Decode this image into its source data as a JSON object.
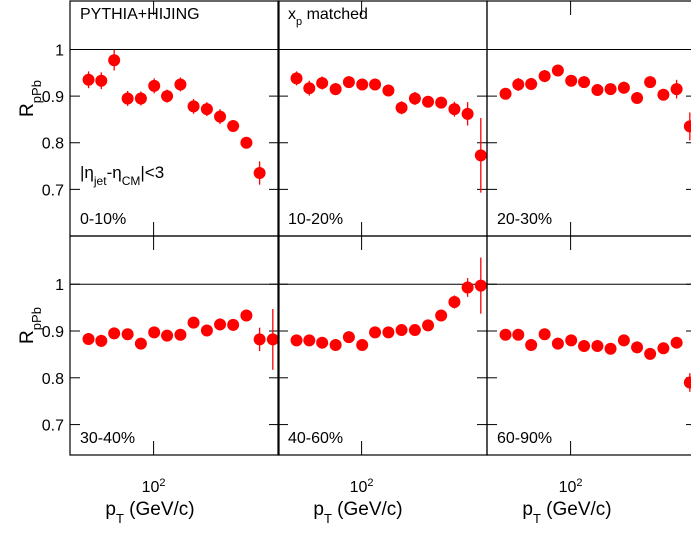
{
  "chart_data": [
    {
      "type": "scatter",
      "xscale": "log",
      "color": "#ff0000",
      "xlim": [
        25,
        800
      ],
      "ylim": [
        0.6,
        1.104
      ],
      "yticks": [
        0.7,
        0.8,
        0.9,
        1
      ],
      "xticks": [
        {
          "value": 100,
          "label": "10",
          "exponent": "2"
        }
      ],
      "hline": 1,
      "title": [
        {
          "text": "PYTHIA+HIJING"
        }
      ],
      "annotation": [
        {
          "text": "|η"
        },
        {
          "text": "jet",
          "sub": true
        },
        {
          "text": "-η"
        },
        {
          "text": "CM",
          "sub": true
        },
        {
          "text": "|<3"
        }
      ],
      "label": "0-10%",
      "ylabel": [
        {
          "text": "R"
        },
        {
          "text": "pPb",
          "sub": true
        }
      ],
      "x": [
        34,
        42,
        52,
        65,
        81,
        101,
        125,
        156,
        194,
        242,
        301,
        374,
        466,
        580
      ],
      "values": [
        0.935,
        0.933,
        0.977,
        0.895,
        0.895,
        0.922,
        0.9,
        0.925,
        0.878,
        0.872,
        0.856,
        0.836,
        0.8,
        0.735
      ],
      "errors": [
        0.018,
        0.018,
        0.022,
        0.016,
        0.015,
        0.016,
        0.014,
        0.015,
        0.016,
        0.015,
        0.016,
        0.012,
        0.012,
        0.025
      ]
    },
    {
      "type": "scatter",
      "xscale": "log",
      "color": "#ff0000",
      "xlim": [
        25,
        800
      ],
      "ylim": [
        0.6,
        1.104
      ],
      "yticks": [
        0.7,
        0.8,
        0.9,
        1
      ],
      "xticks": [
        {
          "value": 100,
          "label": "10",
          "exponent": "2"
        }
      ],
      "hline": 1,
      "title": [
        {
          "text": "x"
        },
        {
          "text": "p",
          "sub": true
        },
        {
          "text": " matched"
        }
      ],
      "label": "10-20%",
      "x": [
        34,
        42,
        52,
        65,
        81,
        101,
        125,
        156,
        194,
        242,
        301,
        374,
        466,
        580,
        722
      ],
      "values": [
        0.938,
        0.917,
        0.928,
        0.915,
        0.93,
        0.925,
        0.925,
        0.912,
        0.875,
        0.895,
        0.888,
        0.886,
        0.872,
        0.862,
        0.773
      ],
      "errors": [
        0.015,
        0.016,
        0.014,
        0.013,
        0.012,
        0.012,
        0.012,
        0.012,
        0.014,
        0.014,
        0.012,
        0.012,
        0.016,
        0.025,
        0.08
      ]
    },
    {
      "type": "scatter",
      "xscale": "log",
      "color": "#ff0000",
      "xlim": [
        25,
        800
      ],
      "ylim": [
        0.6,
        1.104
      ],
      "yticks": [
        0.7,
        0.8,
        0.9,
        1
      ],
      "xticks": [
        {
          "value": 100,
          "label": "10",
          "exponent": "2"
        }
      ],
      "hline": 1,
      "label": "20-30%",
      "x": [
        34,
        42,
        52,
        65,
        81,
        101,
        125,
        156,
        194,
        242,
        301,
        374,
        466,
        580,
        722
      ],
      "values": [
        0.905,
        0.925,
        0.926,
        0.943,
        0.955,
        0.933,
        0.93,
        0.913,
        0.915,
        0.918,
        0.896,
        0.93,
        0.903,
        0.915,
        0.835
      ],
      "errors": [
        0.012,
        0.014,
        0.013,
        0.013,
        0.012,
        0.012,
        0.012,
        0.012,
        0.012,
        0.013,
        0.012,
        0.012,
        0.012,
        0.02,
        0.03
      ]
    },
    {
      "type": "scatter",
      "xscale": "log",
      "color": "#ff0000",
      "xlim": [
        25,
        800
      ],
      "ylim": [
        0.635,
        1.103
      ],
      "yticks": [
        0.7,
        0.8,
        0.9,
        1
      ],
      "xticks": [
        {
          "value": 100,
          "label": "10",
          "exponent": "2"
        }
      ],
      "hline": 1,
      "label": "30-40%",
      "ylabel": [
        {
          "text": "R"
        },
        {
          "text": "pPb",
          "sub": true
        }
      ],
      "xlabel": [
        {
          "text": "p"
        },
        {
          "text": "T",
          "sub": true
        },
        {
          "text": " (GeV/c)"
        }
      ],
      "x": [
        34,
        42,
        52,
        65,
        81,
        101,
        125,
        156,
        194,
        242,
        301,
        374,
        466,
        580,
        722
      ],
      "values": [
        0.883,
        0.879,
        0.895,
        0.893,
        0.873,
        0.897,
        0.89,
        0.892,
        0.918,
        0.901,
        0.914,
        0.913,
        0.933,
        0.882,
        0.882
      ],
      "errors": [
        0.012,
        0.013,
        0.012,
        0.012,
        0.012,
        0.011,
        0.011,
        0.011,
        0.012,
        0.012,
        0.013,
        0.011,
        0.011,
        0.025,
        0.065
      ]
    },
    {
      "type": "scatter",
      "xscale": "log",
      "color": "#ff0000",
      "xlim": [
        25,
        800
      ],
      "ylim": [
        0.635,
        1.103
      ],
      "yticks": [
        0.7,
        0.8,
        0.9,
        1
      ],
      "xticks": [
        {
          "value": 100,
          "label": "10",
          "exponent": "2"
        }
      ],
      "hline": 1,
      "label": "40-60%",
      "xlabel": [
        {
          "text": "p"
        },
        {
          "text": "T",
          "sub": true
        },
        {
          "text": " (GeV/c)"
        }
      ],
      "x": [
        34,
        42,
        52,
        65,
        81,
        101,
        125,
        156,
        194,
        242,
        301,
        374,
        466,
        580,
        722
      ],
      "values": [
        0.88,
        0.88,
        0.875,
        0.87,
        0.887,
        0.87,
        0.897,
        0.897,
        0.902,
        0.902,
        0.912,
        0.933,
        0.962,
        0.993,
        0.997
      ],
      "errors": [
        0.01,
        0.01,
        0.01,
        0.01,
        0.01,
        0.01,
        0.01,
        0.01,
        0.01,
        0.01,
        0.01,
        0.012,
        0.014,
        0.02,
        0.06
      ]
    },
    {
      "type": "scatter",
      "xscale": "log",
      "color": "#ff0000",
      "xlim": [
        25,
        800
      ],
      "ylim": [
        0.635,
        1.103
      ],
      "yticks": [
        0.7,
        0.8,
        0.9,
        1
      ],
      "xticks": [
        {
          "value": 100,
          "label": "10",
          "exponent": "2"
        }
      ],
      "hline": 1,
      "label": "60-90%",
      "xlabel": [
        {
          "text": "p"
        },
        {
          "text": "T",
          "sub": true
        },
        {
          "text": " (GeV/c)"
        }
      ],
      "x": [
        34,
        42,
        52,
        65,
        81,
        101,
        125,
        156,
        194,
        242,
        301,
        374,
        466,
        580,
        722
      ],
      "values": [
        0.892,
        0.892,
        0.87,
        0.893,
        0.873,
        0.88,
        0.868,
        0.868,
        0.862,
        0.88,
        0.865,
        0.851,
        0.863,
        0.875,
        0.79
      ],
      "errors": [
        0.01,
        0.01,
        0.01,
        0.01,
        0.01,
        0.01,
        0.01,
        0.01,
        0.01,
        0.01,
        0.01,
        0.01,
        0.01,
        0.012,
        0.02
      ]
    }
  ]
}
